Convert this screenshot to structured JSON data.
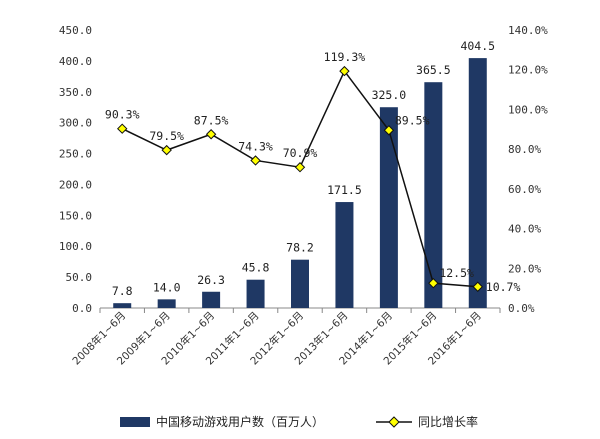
{
  "chart_data": {
    "type": "bar+line",
    "categories": [
      "2008年1~6月",
      "2009年1~6月",
      "2010年1~6月",
      "2011年1~6月",
      "2012年1~6月",
      "2013年1~6月",
      "2014年1~6月",
      "2015年1~6月",
      "2016年1~6月"
    ],
    "series": [
      {
        "name": "中国移动游戏用户数（百万人）",
        "type": "bar",
        "axis": "left",
        "color": "#1f3864",
        "values": [
          7.8,
          14.0,
          26.3,
          45.8,
          78.2,
          171.5,
          325.0,
          365.5,
          404.5
        ],
        "labels": [
          "7.8",
          "14.0",
          "26.3",
          "45.8",
          "78.2",
          "171.5",
          "325.0",
          "365.5",
          "404.5"
        ]
      },
      {
        "name": "同比增长率",
        "type": "line",
        "axis": "right",
        "color": "#111111",
        "marker_color": "#ffff00",
        "values": [
          90.3,
          79.5,
          87.5,
          74.3,
          70.9,
          119.3,
          89.5,
          12.5,
          10.7
        ],
        "labels": [
          "90.3%",
          "79.5%",
          "87.5%",
          "74.3%",
          "70.9%",
          "119.3%",
          "89.5%",
          "12.5%",
          "10.7%"
        ]
      }
    ],
    "y_left": {
      "min": 0,
      "max": 450,
      "step": 50,
      "ticks": [
        "0.0",
        "50.0",
        "100.0",
        "150.0",
        "200.0",
        "250.0",
        "300.0",
        "350.0",
        "400.0",
        "450.0"
      ]
    },
    "y_right": {
      "min": 0,
      "max": 140,
      "step": 20,
      "ticks": [
        "0.0%",
        "20.0%",
        "40.0%",
        "60.0%",
        "80.0%",
        "100.0%",
        "120.0%",
        "140.0%"
      ]
    },
    "grid": false,
    "legend_position": "bottom"
  }
}
